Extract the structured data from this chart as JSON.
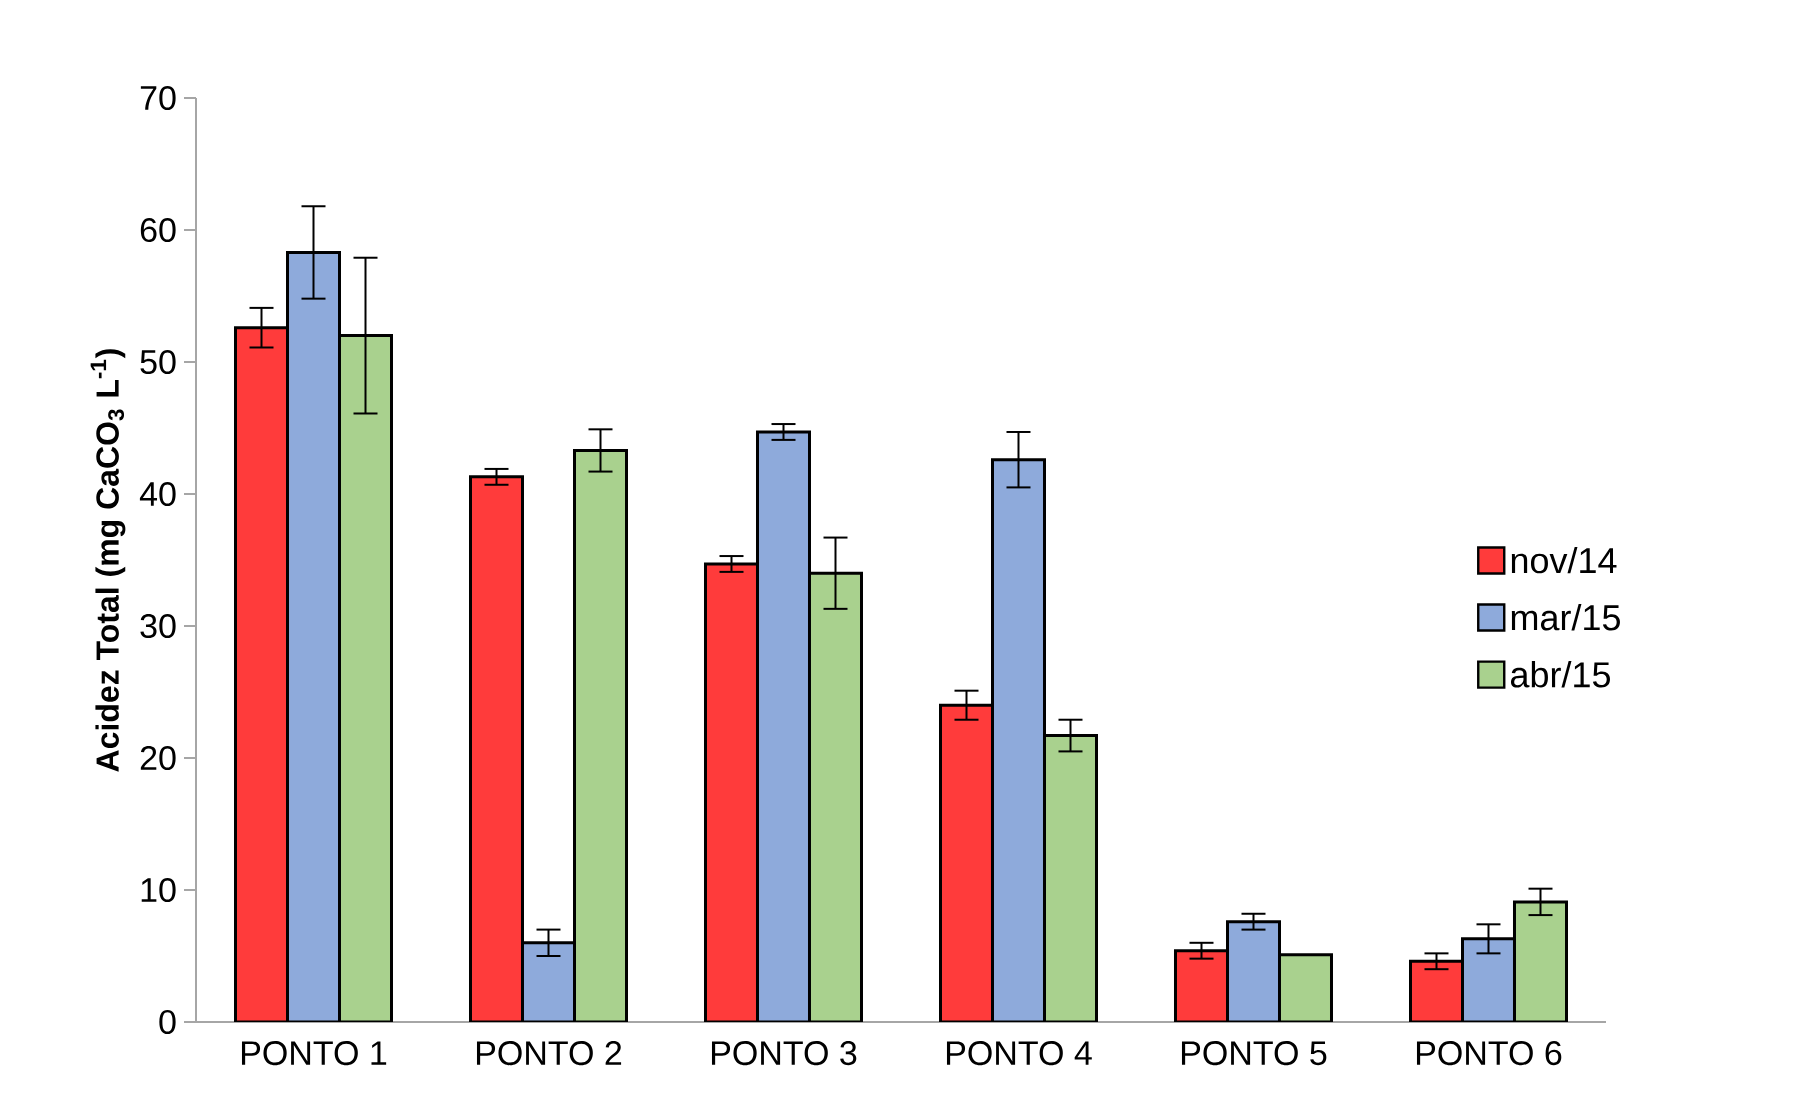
{
  "chart_data": {
    "type": "bar",
    "ylabel": "Acidez Total (mg CaCO$_{3}$ L$^{-1}$)",
    "categories": [
      "PONTO 1",
      "PONTO 2",
      "PONTO 3",
      "PONTO 4",
      "PONTO 5",
      "PONTO 6"
    ],
    "series": [
      {
        "name": "nov/14",
        "color": "#ff3b3b",
        "values": [
          52.6,
          41.3,
          34.7,
          24.0,
          5.4,
          4.6
        ],
        "errors": [
          1.5,
          0.6,
          0.6,
          1.1,
          0.6,
          0.6
        ]
      },
      {
        "name": "mar/15",
        "color": "#8eaadb",
        "values": [
          58.3,
          6.0,
          44.7,
          42.6,
          7.6,
          6.3
        ],
        "errors": [
          3.5,
          1.0,
          0.6,
          2.1,
          0.6,
          1.1
        ]
      },
      {
        "name": "abr/15",
        "color": "#a9d18e",
        "values": [
          52.0,
          43.3,
          34.0,
          21.7,
          5.1,
          9.1
        ],
        "errors": [
          5.9,
          1.6,
          2.7,
          1.2,
          null,
          1.0
        ]
      }
    ],
    "ylim": [
      0,
      70
    ],
    "yticks": [
      0,
      10,
      20,
      30,
      40,
      50,
      60,
      70
    ],
    "grid": false,
    "legend": "right"
  }
}
